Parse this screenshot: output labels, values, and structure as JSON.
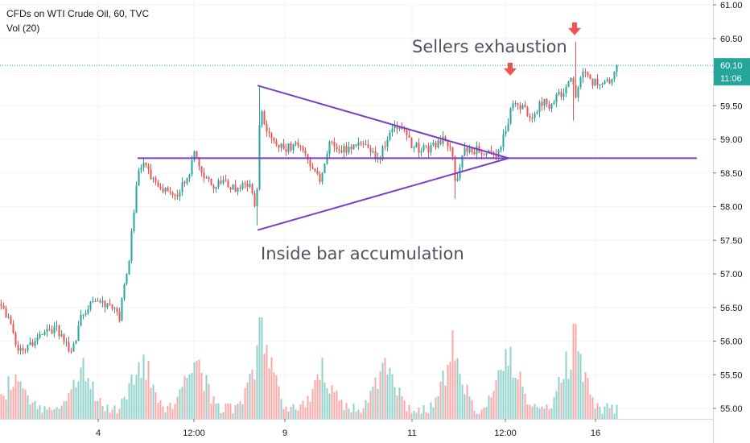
{
  "legend": {
    "title": "CFDs on WTI Crude Oil, 60, TVC",
    "volume": "Vol (20)"
  },
  "annotations": {
    "sellers": "Sellers exhaustion",
    "inside": "Inside bar accumulation"
  },
  "price_label": {
    "value": "60.10",
    "countdown": "11:06"
  },
  "colors": {
    "up": "#26a69a",
    "down": "#ef5350",
    "vol_up": "#8fd2cb",
    "vol_down": "#f7a9a7",
    "drawing": "#7b3fc5",
    "marker": "#ef5350",
    "price_line": "#26a69a"
  },
  "chart_data": {
    "type": "candlestick",
    "symbol": "CFDs on WTI Crude Oil",
    "interval": "60",
    "source": "TVC",
    "y_axis": {
      "range": [
        54.9,
        61.1
      ],
      "ticks": [
        "61.00",
        "60.50",
        "60.00",
        "59.50",
        "59.00",
        "58.50",
        "58.00",
        "57.50",
        "57.00",
        "56.50",
        "56.00",
        "55.50",
        "55.00"
      ]
    },
    "x_axis": {
      "ticks": [
        "4",
        "12:00",
        "9",
        "11",
        "12:00",
        "16"
      ]
    },
    "last_price": 60.1,
    "price_path": [
      [
        0,
        56.55
      ],
      [
        10,
        56.35
      ],
      [
        18,
        56.0
      ],
      [
        26,
        55.85
      ],
      [
        40,
        55.95
      ],
      [
        55,
        56.1
      ],
      [
        70,
        56.2
      ],
      [
        80,
        55.95
      ],
      [
        90,
        55.85
      ],
      [
        100,
        56.35
      ],
      [
        110,
        56.55
      ],
      [
        125,
        56.55
      ],
      [
        140,
        56.55
      ],
      [
        148,
        56.35
      ],
      [
        152,
        56.75
      ],
      [
        158,
        57.0
      ],
      [
        164,
        57.7
      ],
      [
        170,
        58.45
      ],
      [
        178,
        58.6
      ],
      [
        190,
        58.4
      ],
      [
        205,
        58.25
      ],
      [
        220,
        58.2
      ],
      [
        232,
        58.4
      ],
      [
        242,
        58.8
      ],
      [
        252,
        58.5
      ],
      [
        262,
        58.3
      ],
      [
        275,
        58.35
      ],
      [
        290,
        58.25
      ],
      [
        305,
        58.4
      ],
      [
        312,
        58.25
      ],
      [
        318,
        57.85
      ],
      [
        323,
        59.55
      ],
      [
        332,
        59.05
      ],
      [
        340,
        59.0
      ],
      [
        352,
        58.85
      ],
      [
        365,
        58.9
      ],
      [
        378,
        58.85
      ],
      [
        388,
        58.55
      ],
      [
        398,
        58.4
      ],
      [
        410,
        59.0
      ],
      [
        425,
        58.85
      ],
      [
        440,
        58.9
      ],
      [
        455,
        58.95
      ],
      [
        470,
        58.7
      ],
      [
        485,
        59.15
      ],
      [
        500,
        59.2
      ],
      [
        512,
        58.9
      ],
      [
        525,
        58.85
      ],
      [
        540,
        58.9
      ],
      [
        552,
        59.05
      ],
      [
        560,
        58.85
      ],
      [
        566,
        58.35
      ],
      [
        575,
        58.8
      ],
      [
        590,
        58.85
      ],
      [
        605,
        58.8
      ],
      [
        618,
        58.8
      ],
      [
        628,
        59.1
      ],
      [
        636,
        59.6
      ],
      [
        648,
        59.5
      ],
      [
        660,
        59.3
      ],
      [
        672,
        59.55
      ],
      [
        685,
        59.5
      ],
      [
        700,
        59.75
      ],
      [
        710,
        59.95
      ],
      [
        716,
        59.55
      ],
      [
        722,
        60.05
      ],
      [
        735,
        59.85
      ],
      [
        750,
        59.85
      ],
      [
        760,
        59.9
      ],
      [
        768,
        60.1
      ]
    ],
    "spikes": [
      {
        "x": 323,
        "high": 59.78
      },
      {
        "x": 318,
        "low": 57.72
      },
      {
        "x": 566,
        "low": 58.12
      },
      {
        "x": 715,
        "high": 60.45
      },
      {
        "x": 712,
        "low": 59.28
      }
    ],
    "drawings": {
      "triangle": {
        "top": {
          "x": 320,
          "price": 59.8
        },
        "bottom": {
          "x": 320,
          "price": 57.65
        },
        "apex": {
          "x": 632,
          "price": 58.72
        }
      },
      "horizontal_level": 58.72,
      "sell_markers": [
        {
          "x": 634,
          "above_price": 59.9
        },
        {
          "x": 714,
          "above_price": 60.5
        }
      ]
    }
  }
}
